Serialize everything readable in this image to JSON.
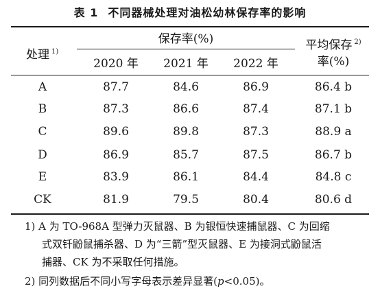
{
  "title": {
    "number": "表 1",
    "text": "不同器械处理对油松幼林保存率的影响"
  },
  "header": {
    "treatment": "处理",
    "treatment_note": "1)",
    "retention_group": "保存率(%)",
    "avg_line1": "平均保存",
    "avg_note": "2)",
    "avg_line2": "率(%)",
    "years": [
      "2020 年",
      "2021 年",
      "2022 年"
    ]
  },
  "rows": [
    {
      "treatment": "A",
      "y2020": "87.7",
      "y2021": "84.6",
      "y2022": "86.9",
      "avg": "86.4 b"
    },
    {
      "treatment": "B",
      "y2020": "87.3",
      "y2021": "86.6",
      "y2022": "87.4",
      "avg": "87.1 b"
    },
    {
      "treatment": "C",
      "y2020": "89.6",
      "y2021": "89.8",
      "y2022": "87.3",
      "avg": "88.9 a"
    },
    {
      "treatment": "D",
      "y2020": "86.9",
      "y2021": "85.7",
      "y2022": "87.5",
      "avg": "86.7 b"
    },
    {
      "treatment": "E",
      "y2020": "83.9",
      "y2021": "86.1",
      "y2022": "84.4",
      "avg": "84.8 c"
    },
    {
      "treatment": "CK",
      "y2020": "81.9",
      "y2021": "79.5",
      "y2022": "80.4",
      "avg": "80.6 d"
    }
  ],
  "notes": {
    "n1_line1": "1) A 为 TO-968A 型弹力灭鼠器、B 为银恒快速捕鼠器、C 为回缩",
    "n1_line2": "式双钎鼢鼠捕杀器、D 为“三箭”型灭鼠器、E 为接洞式鼢鼠活",
    "n1_line3": "捕器、CK 为不采取任何措施。",
    "n2_before": "2) 同列数据后不同小写字母表示差异显著(",
    "n2_p": "p",
    "n2_after": "<0.05)。"
  }
}
